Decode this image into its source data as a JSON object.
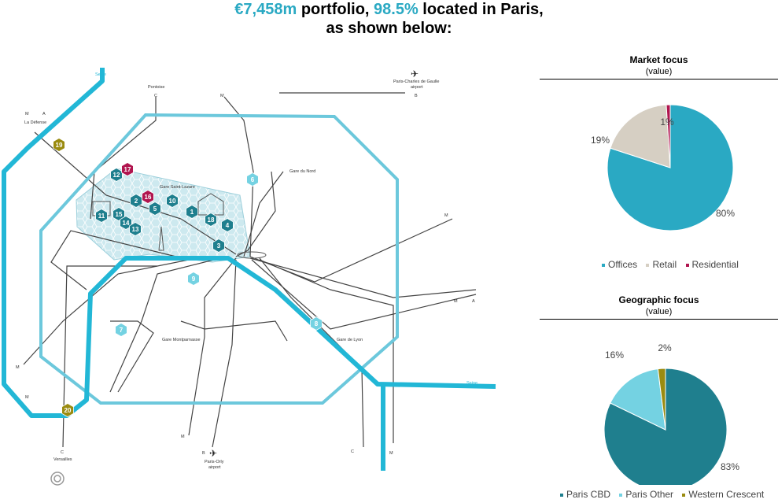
{
  "headline": {
    "amount": "€7,458m",
    "part1": " portfolio, ",
    "pct": "98.5%",
    "part2": " located in Paris,",
    "line2": "as shown below:"
  },
  "colors": {
    "accent": "#2aa9c3",
    "offices": "#2aa9c3",
    "retail": "#d6cfc3",
    "residential": "#b0154f",
    "paris_cbd": "#1f7f8e",
    "paris_other": "#74d2e2",
    "western_crescent": "#9a8b10"
  },
  "map": {
    "labels": {
      "pontoise": "Pontoise",
      "cdg": "Paris-Charles de Gaulle",
      "cdg2": "airport",
      "defense": "La Défense",
      "gare_nord": "Gare du Nord",
      "gare_st_lazare": "Gare Saint-Lazare",
      "gare_montparnasse": "Gare Montparnasse",
      "gare_lyon": "Gare de Lyon",
      "versailles": "Versailles",
      "orly": "Paris-Orly",
      "orly2": "airport",
      "seine_top": "Seine",
      "seine_right": "Seine",
      "m": "M",
      "a": "A",
      "b": "B",
      "c": "C"
    },
    "markers": [
      {
        "n": "19",
        "kind": "western"
      },
      {
        "n": "12",
        "kind": "cbd"
      },
      {
        "n": "17",
        "kind": "residential"
      },
      {
        "n": "2",
        "kind": "cbd"
      },
      {
        "n": "16",
        "kind": "residential"
      },
      {
        "n": "10",
        "kind": "cbd"
      },
      {
        "n": "5",
        "kind": "cbd"
      },
      {
        "n": "1",
        "kind": "cbd"
      },
      {
        "n": "18",
        "kind": "cbd"
      },
      {
        "n": "4",
        "kind": "cbd"
      },
      {
        "n": "11",
        "kind": "cbd"
      },
      {
        "n": "15",
        "kind": "cbd"
      },
      {
        "n": "14",
        "kind": "cbd"
      },
      {
        "n": "13",
        "kind": "cbd"
      },
      {
        "n": "3",
        "kind": "cbd"
      },
      {
        "n": "6",
        "kind": "other"
      },
      {
        "n": "9",
        "kind": "other"
      },
      {
        "n": "7",
        "kind": "other"
      },
      {
        "n": "8",
        "kind": "other"
      },
      {
        "n": "20",
        "kind": "western"
      }
    ]
  },
  "chart_data": [
    {
      "type": "pie",
      "title": "Market focus",
      "subtitle": "(value)",
      "categories": [
        "Offices",
        "Retail",
        "Residential"
      ],
      "values": [
        80,
        19,
        1
      ],
      "labels": [
        "80%",
        "19%",
        "1%"
      ],
      "colors": [
        "#2aa9c3",
        "#d6cfc3",
        "#b0154f"
      ],
      "legend": "bottom"
    },
    {
      "type": "pie",
      "title": "Geographic focus",
      "subtitle": "(value)",
      "categories": [
        "Paris CBD",
        "Paris Other",
        "Western Crescent"
      ],
      "values": [
        83,
        16,
        2
      ],
      "labels": [
        "83%",
        "16%",
        "2%"
      ],
      "colors": [
        "#1f7f8e",
        "#74d2e2",
        "#9a8b10"
      ],
      "legend": "bottom"
    }
  ]
}
